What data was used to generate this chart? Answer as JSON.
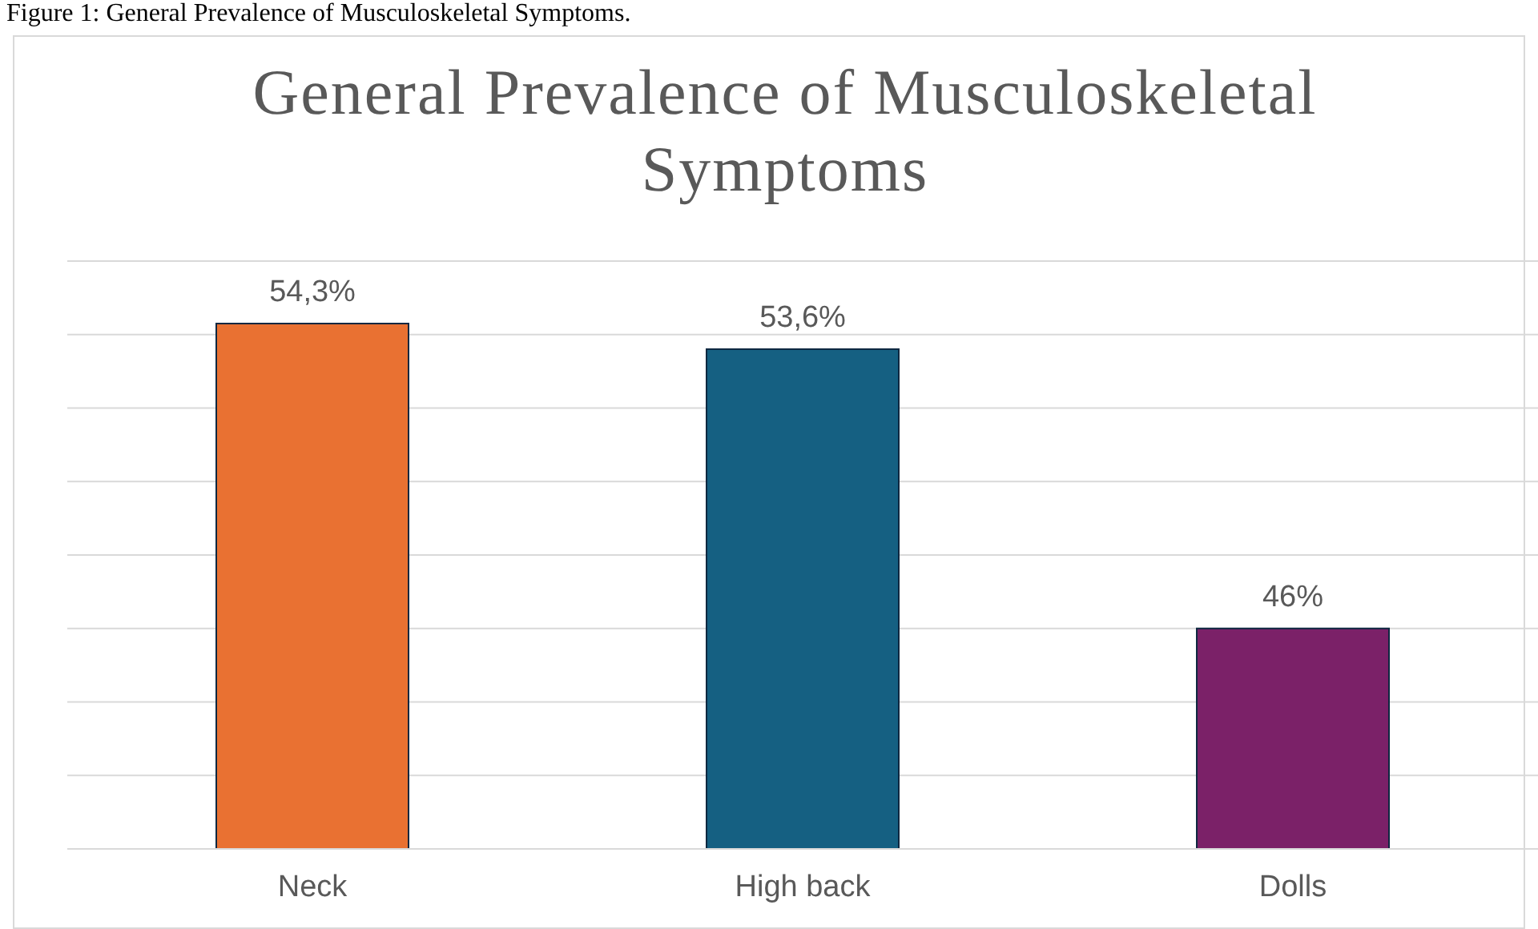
{
  "chart_data": {
    "type": "bar",
    "title": "General Prevalence of Musculoskeletal Symptoms",
    "annotations": [
      "Figure 1: General Prevalence of Musculoskeletal Symptoms."
    ],
    "categories": [
      "Neck",
      "High back",
      "Dolls"
    ],
    "values": [
      54.3,
      53.6,
      46
    ],
    "colors": [
      "#e97132",
      "#156082",
      "#7b2168"
    ],
    "value_labels": [
      "54,3%",
      "53,6%",
      "46%"
    ],
    "ylim": [
      40,
      56
    ],
    "yticks": [
      {
        "value": 40,
        "label": null
      },
      {
        "value": 42,
        "label": null
      },
      {
        "value": 44,
        "label": null
      },
      {
        "value": 46,
        "label": null
      },
      {
        "value": 48,
        "label": null
      },
      {
        "value": 50,
        "label": null
      },
      {
        "value": 52,
        "label": null
      },
      {
        "value": 54,
        "label": null
      },
      {
        "value": 56,
        "label": null
      }
    ],
    "tick_labels": "x",
    "grid": "y",
    "legend": false
  }
}
